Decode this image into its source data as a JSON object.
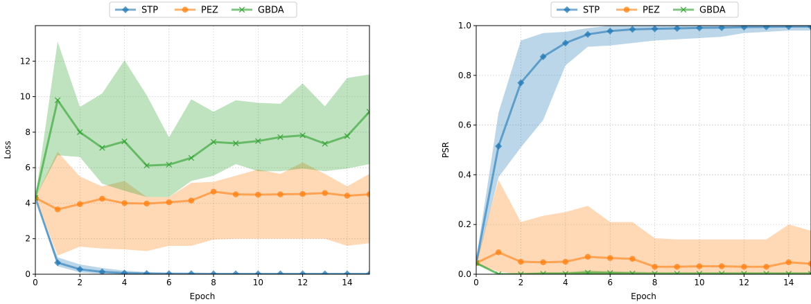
{
  "colors": {
    "STP": "#1f77b4",
    "PEZ": "#ff7f0e",
    "GBDA": "#2ca02c"
  },
  "chart_data": [
    {
      "type": "line",
      "xlabel": "Epoch",
      "ylabel": "Loss",
      "xlim": [
        0,
        15
      ],
      "ylim": [
        0,
        14
      ],
      "xticks": [
        0,
        2,
        4,
        6,
        8,
        10,
        12,
        14
      ],
      "yticks": [
        0,
        2,
        4,
        6,
        8,
        10,
        12
      ],
      "grid": true,
      "legend": "top-center",
      "x": [
        0,
        1,
        2,
        3,
        4,
        5,
        6,
        7,
        8,
        9,
        10,
        11,
        12,
        13,
        14,
        15
      ],
      "series": [
        {
          "name": "STP",
          "marker": "diamond",
          "values": [
            4.3,
            0.65,
            0.28,
            0.13,
            0.07,
            0.04,
            0.03,
            0.03,
            0.02,
            0.02,
            0.02,
            0.02,
            0.02,
            0.02,
            0.02,
            0.02
          ],
          "lower": [
            4.3,
            0.45,
            0.1,
            0.03,
            0.0,
            0.0,
            0.0,
            0.0,
            0.0,
            0.0,
            0.0,
            0.0,
            0.0,
            0.0,
            0.0,
            0.0
          ],
          "upper": [
            4.3,
            0.95,
            0.55,
            0.35,
            0.2,
            0.12,
            0.08,
            0.06,
            0.05,
            0.05,
            0.05,
            0.05,
            0.05,
            0.05,
            0.05,
            0.05
          ]
        },
        {
          "name": "PEZ",
          "marker": "circle",
          "values": [
            4.3,
            3.65,
            3.95,
            4.25,
            4.0,
            3.98,
            4.05,
            4.15,
            4.65,
            4.5,
            4.48,
            4.5,
            4.52,
            4.57,
            4.42,
            4.5
          ],
          "lower": [
            4.3,
            1.05,
            1.55,
            1.45,
            1.4,
            1.3,
            1.6,
            1.6,
            1.95,
            2.0,
            2.0,
            2.0,
            2.0,
            2.0,
            1.6,
            1.75
          ],
          "upper": [
            4.3,
            6.9,
            5.5,
            4.95,
            5.25,
            4.35,
            4.35,
            5.15,
            5.2,
            5.55,
            5.9,
            5.65,
            6.3,
            5.65,
            4.95,
            5.65
          ]
        },
        {
          "name": "GBDA",
          "marker": "x",
          "values": [
            4.3,
            9.8,
            8.0,
            7.12,
            7.48,
            6.12,
            6.17,
            6.55,
            7.45,
            7.37,
            7.5,
            7.72,
            7.82,
            7.35,
            7.78,
            9.15
          ],
          "lower": [
            4.3,
            6.7,
            6.6,
            5.1,
            4.7,
            4.35,
            4.35,
            5.25,
            5.55,
            6.2,
            5.8,
            5.8,
            5.95,
            5.8,
            5.95,
            6.2
          ],
          "upper": [
            4.3,
            13.1,
            9.42,
            10.18,
            12.05,
            10.08,
            7.7,
            9.85,
            9.15,
            9.8,
            9.65,
            9.6,
            10.75,
            9.45,
            11.05,
            11.25
          ]
        }
      ]
    },
    {
      "type": "line",
      "xlabel": "Epoch",
      "ylabel": "PSR",
      "xlim": [
        0,
        15
      ],
      "ylim": [
        0,
        1.0
      ],
      "xticks": [
        0,
        2,
        4,
        6,
        8,
        10,
        12,
        14
      ],
      "yticks": [
        0.0,
        0.2,
        0.4,
        0.6,
        0.8,
        1.0
      ],
      "grid": true,
      "legend": "top-center",
      "x": [
        0,
        1,
        2,
        3,
        4,
        5,
        6,
        7,
        8,
        9,
        10,
        11,
        12,
        13,
        14,
        15
      ],
      "series": [
        {
          "name": "STP",
          "marker": "diamond",
          "values": [
            0.045,
            0.515,
            0.77,
            0.875,
            0.93,
            0.965,
            0.978,
            0.985,
            0.987,
            0.989,
            0.991,
            0.992,
            0.994,
            0.995,
            0.996,
            0.996
          ],
          "lower": [
            0.03,
            0.39,
            0.51,
            0.62,
            0.84,
            0.915,
            0.92,
            0.93,
            0.94,
            0.945,
            0.95,
            0.955,
            0.97,
            0.975,
            0.98,
            0.98
          ],
          "upper": [
            0.06,
            0.65,
            0.94,
            0.97,
            0.975,
            0.99,
            1.0,
            1.0,
            1.0,
            1.0,
            1.0,
            1.0,
            1.0,
            1.0,
            1.0,
            1.0
          ]
        },
        {
          "name": "PEZ",
          "marker": "circle",
          "values": [
            0.045,
            0.088,
            0.05,
            0.048,
            0.05,
            0.07,
            0.065,
            0.062,
            0.03,
            0.03,
            0.032,
            0.032,
            0.03,
            0.03,
            0.048,
            0.042
          ],
          "lower": [
            0.04,
            0.01,
            0.0,
            0.0,
            0.0,
            0.0,
            0.0,
            0.0,
            0.0,
            0.0,
            0.0,
            0.0,
            0.0,
            0.0,
            0.0,
            0.0
          ],
          "upper": [
            0.05,
            0.38,
            0.21,
            0.235,
            0.25,
            0.275,
            0.21,
            0.21,
            0.145,
            0.14,
            0.14,
            0.14,
            0.14,
            0.14,
            0.2,
            0.175
          ]
        },
        {
          "name": "GBDA",
          "marker": "x",
          "values": [
            0.045,
            0.0,
            0.0,
            0.002,
            0.002,
            0.006,
            0.005,
            0.003,
            0.002,
            0.002,
            0.002,
            0.002,
            0.002,
            0.002,
            0.002,
            0.002
          ],
          "lower": [
            0.04,
            0.0,
            0.0,
            0.0,
            0.0,
            0.0,
            0.0,
            0.0,
            0.0,
            0.0,
            0.0,
            0.0,
            0.0,
            0.0,
            0.0,
            0.0
          ],
          "upper": [
            0.05,
            0.005,
            0.005,
            0.008,
            0.008,
            0.015,
            0.012,
            0.01,
            0.008,
            0.008,
            0.008,
            0.008,
            0.008,
            0.008,
            0.008,
            0.008
          ]
        }
      ]
    }
  ]
}
